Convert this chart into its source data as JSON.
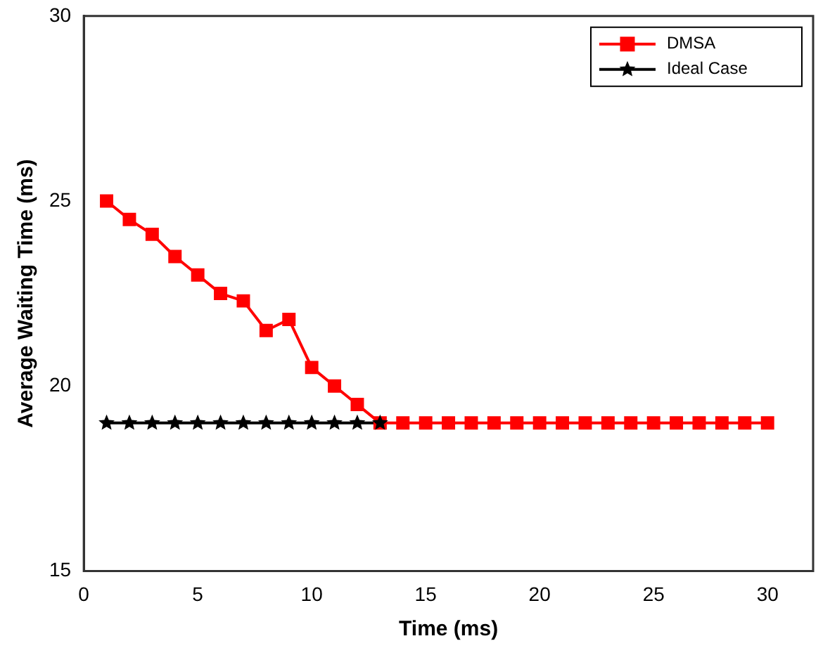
{
  "chart_data": {
    "type": "line",
    "xlabel": "Time (ms)",
    "ylabel": "Average Waiting Time (ms)",
    "x": [
      1,
      2,
      3,
      4,
      5,
      6,
      7,
      8,
      9,
      10,
      11,
      12,
      13,
      14,
      15,
      16,
      17,
      18,
      19,
      20,
      21,
      22,
      23,
      24,
      25,
      26,
      27,
      28,
      29,
      30
    ],
    "series": [
      {
        "name": "DMSA",
        "color": "#ff0000",
        "marker": "square",
        "values": [
          25,
          24.5,
          24.1,
          23.5,
          23,
          22.5,
          22.3,
          21.5,
          21.8,
          20.5,
          20,
          19.5,
          19,
          19,
          19,
          19,
          19,
          19,
          19,
          19,
          19,
          19,
          19,
          19,
          19,
          19,
          19,
          19,
          19,
          19
        ]
      },
      {
        "name": "Ideal Case",
        "color": "#000000",
        "marker": "star",
        "values": [
          19,
          19,
          19,
          19,
          19,
          19,
          19,
          19,
          19,
          19,
          19,
          19,
          19,
          null,
          null,
          null,
          null,
          null,
          null,
          null,
          null,
          null,
          null,
          null,
          null,
          null,
          null,
          null,
          null,
          null
        ]
      }
    ],
    "xlim": [
      0,
      32
    ],
    "xticks": [
      0,
      5,
      10,
      15,
      20,
      25,
      30
    ],
    "ylim": [
      15,
      30
    ],
    "yticks": [
      15,
      20,
      25,
      30
    ],
    "legend": "top right",
    "grid": false
  }
}
